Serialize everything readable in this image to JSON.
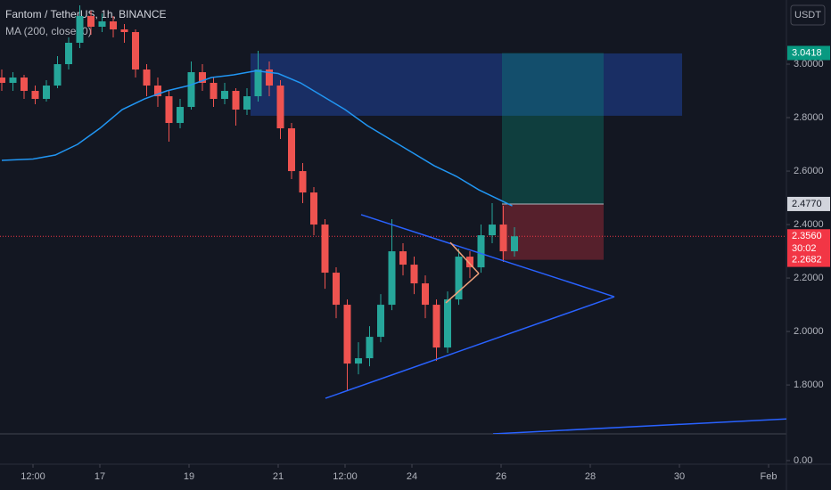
{
  "chart_data": {
    "type": "candlestick",
    "title": "Fantom / TetherUS, 1h, BINANCE",
    "subtitle": "MA (200, close, 0)",
    "currency": "USDT",
    "xlim": [
      14.76,
      32.4
    ],
    "ylim": [
      1.617,
      3.24
    ],
    "xticks": [
      {
        "value": 15.5,
        "label": "12:00"
      },
      17,
      19,
      21,
      {
        "value": 22.5,
        "label": "12:00"
      },
      24,
      26,
      28,
      30,
      {
        "value": 32,
        "label": "Feb"
      }
    ],
    "yticks": [
      {
        "value": 1.8,
        "label": "1.8000"
      },
      {
        "value": 2.0,
        "label": "2.0000"
      },
      {
        "value": 2.2,
        "label": "2.2000"
      },
      {
        "value": 2.4,
        "label": "2.4000"
      },
      {
        "value": 2.6,
        "label": "2.6000"
      },
      {
        "value": 2.8,
        "label": "2.8000"
      },
      {
        "value": 3.0,
        "label": "3.0000"
      }
    ],
    "lower_pane_yticks": [
      {
        "value": 0,
        "label": "0.00"
      }
    ],
    "up_color": "#26a69a",
    "down_color": "#ef5350",
    "x": [
      14.8,
      15.05,
      15.3,
      15.55,
      15.8,
      16.05,
      16.3,
      16.55,
      16.8,
      17.05,
      17.3,
      17.55,
      17.8,
      18.05,
      18.3,
      18.55,
      18.8,
      19.05,
      19.3,
      19.55,
      19.8,
      20.05,
      20.3,
      20.55,
      20.8,
      21.05,
      21.3,
      21.55,
      21.8,
      22.05,
      22.3,
      22.55,
      22.8,
      23.05,
      23.3,
      23.55,
      23.8,
      24.05,
      24.3,
      24.55,
      24.8,
      25.05,
      25.3,
      25.55,
      25.8,
      26.05,
      26.3
    ],
    "open": [
      2.95,
      2.93,
      2.95,
      2.9,
      2.87,
      2.92,
      3.0,
      3.08,
      3.18,
      3.14,
      3.16,
      3.13,
      3.12,
      2.98,
      2.92,
      2.88,
      2.78,
      2.84,
      2.97,
      2.93,
      2.87,
      2.9,
      2.83,
      2.88,
      2.98,
      2.92,
      2.76,
      2.6,
      2.52,
      2.4,
      2.22,
      2.1,
      1.88,
      1.9,
      1.98,
      2.1,
      2.3,
      2.25,
      2.18,
      2.1,
      1.94,
      2.12,
      2.28,
      2.24,
      2.36,
      2.4,
      2.3
    ],
    "high": [
      2.98,
      2.97,
      2.96,
      2.92,
      2.94,
      3.03,
      3.1,
      3.22,
      3.2,
      3.19,
      3.18,
      3.15,
      3.13,
      3.0,
      2.95,
      2.9,
      2.87,
      3.01,
      3.0,
      2.95,
      2.93,
      2.91,
      2.91,
      3.05,
      3.01,
      2.94,
      2.78,
      2.63,
      2.54,
      2.42,
      2.24,
      2.12,
      1.96,
      2.02,
      2.14,
      2.42,
      2.33,
      2.28,
      2.21,
      2.12,
      2.15,
      2.31,
      2.3,
      2.4,
      2.48,
      2.47,
      2.39
    ],
    "low": [
      2.9,
      2.9,
      2.87,
      2.85,
      2.86,
      2.91,
      2.98,
      3.06,
      3.11,
      3.12,
      3.1,
      3.08,
      2.95,
      2.88,
      2.84,
      2.71,
      2.76,
      2.83,
      2.9,
      2.84,
      2.85,
      2.77,
      2.81,
      2.86,
      2.88,
      2.72,
      2.57,
      2.48,
      2.36,
      2.16,
      2.05,
      1.78,
      1.84,
      1.87,
      1.96,
      2.08,
      2.21,
      2.14,
      2.05,
      1.89,
      1.92,
      2.1,
      2.2,
      2.22,
      2.33,
      2.26,
      2.28
    ],
    "close": [
      2.93,
      2.95,
      2.9,
      2.87,
      2.92,
      3.0,
      3.08,
      3.18,
      3.14,
      3.16,
      3.13,
      3.12,
      2.98,
      2.92,
      2.88,
      2.78,
      2.84,
      2.97,
      2.93,
      2.87,
      2.9,
      2.83,
      2.88,
      2.98,
      2.92,
      2.76,
      2.6,
      2.52,
      2.4,
      2.22,
      2.1,
      1.88,
      1.9,
      1.98,
      2.1,
      2.3,
      2.25,
      2.18,
      2.1,
      1.94,
      2.12,
      2.28,
      2.24,
      2.36,
      2.4,
      2.3,
      2.356
    ],
    "moving_average": {
      "color": "#2196f3",
      "x": [
        14.8,
        15.5,
        16.0,
        16.5,
        17.0,
        17.5,
        18.0,
        18.5,
        19.0,
        19.5,
        20.0,
        20.5,
        21.0,
        21.5,
        22.0,
        22.5,
        23.0,
        23.5,
        24.0,
        24.5,
        25.0,
        25.5,
        26.0,
        26.25
      ],
      "values": [
        2.64,
        2.645,
        2.66,
        2.7,
        2.76,
        2.83,
        2.87,
        2.9,
        2.92,
        2.95,
        2.96,
        2.975,
        2.965,
        2.93,
        2.88,
        2.83,
        2.77,
        2.72,
        2.67,
        2.62,
        2.58,
        2.53,
        2.49,
        2.47
      ]
    },
    "zone": {
      "x": [
        20.38,
        30.06
      ],
      "y": [
        2.807,
        3.04
      ],
      "color": "#2962ff"
    },
    "long_position": {
      "x": [
        26.02,
        28.3
      ],
      "target": 3.0418,
      "entry": 2.477,
      "stop": 2.2682
    },
    "trend_lines": [
      {
        "x": [
          22.86,
          28.54
        ],
        "y": [
          2.437,
          2.13
        ],
        "color": "#2962ff"
      },
      {
        "x": [
          22.06,
          28.54
        ],
        "y": [
          1.75,
          2.13
        ],
        "color": "#2962ff"
      },
      {
        "x": [
          24.86,
          25.5
        ],
        "y": [
          2.333,
          2.217
        ],
        "color": "#f0a07a"
      },
      {
        "x": [
          24.76,
          25.5
        ],
        "y": [
          2.107,
          2.217
        ],
        "color": "#f0a07a"
      },
      {
        "x": [
          25.82,
          32.4
        ],
        "y": [
          1.617,
          1.673
        ],
        "color": "#2962ff"
      }
    ],
    "price_labels": [
      {
        "value": 3.0418,
        "label": "3.0418",
        "color": "#089981"
      },
      {
        "value": 2.477,
        "label": "2.4770",
        "color": "#d1d4dc"
      },
      {
        "value": 2.2682,
        "label": "2.2682",
        "color": "#f23645"
      }
    ],
    "last_price": {
      "value": 2.356,
      "label": "2.3560",
      "countdown": "30:02",
      "color": "#f23645"
    }
  }
}
